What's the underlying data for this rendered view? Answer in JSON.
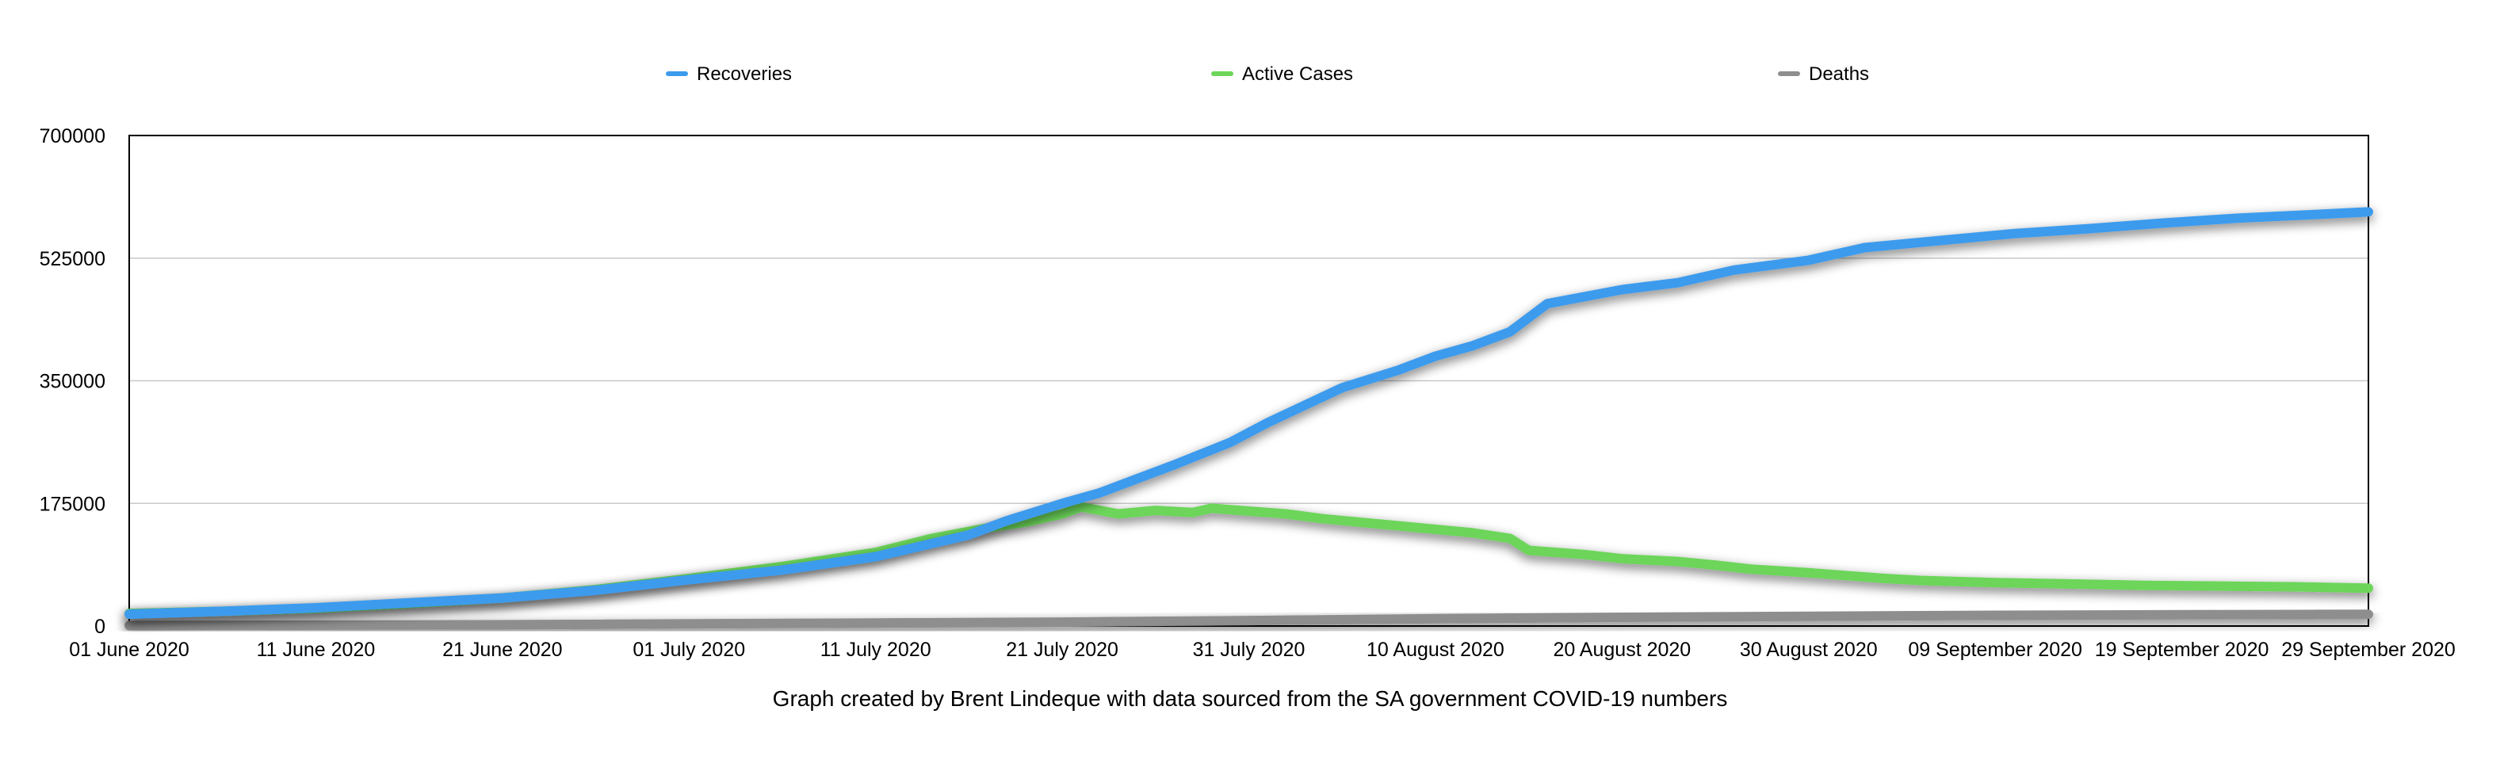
{
  "chart_data": {
    "type": "line",
    "caption": "Graph created by Brent Lindeque with data sourced from the SA government COVID-19 numbers",
    "legend_position": "top",
    "grid": "horizontal",
    "ylim": [
      0,
      700000
    ],
    "y_ticks": [
      "700000",
      "525000",
      "350000",
      "175000",
      "0"
    ],
    "x_ticks": [
      "01 June 2020",
      "11 June 2020",
      "21 June 2020",
      "01 July 2020",
      "11 July 2020",
      "21 July 2020",
      "31 July 2020",
      "10 August 2020",
      "20 August 2020",
      "30 August 2020",
      "09 September 2020",
      "19 September 2020",
      "29 September 2020"
    ],
    "series": [
      {
        "name": "Recoveries",
        "color": "#3d9bed",
        "points": [
          [
            "2020-06-01",
            17000
          ],
          [
            "2020-06-06",
            21000
          ],
          [
            "2020-06-11",
            26000
          ],
          [
            "2020-06-16",
            33000
          ],
          [
            "2020-06-21",
            40000
          ],
          [
            "2020-06-26",
            51000
          ],
          [
            "2020-07-01",
            66000
          ],
          [
            "2020-07-06",
            80000
          ],
          [
            "2020-07-11",
            99000
          ],
          [
            "2020-07-16",
            130000
          ],
          [
            "2020-07-18",
            150000
          ],
          [
            "2020-07-21",
            175000
          ],
          [
            "2020-07-23",
            190000
          ],
          [
            "2020-07-25",
            210000
          ],
          [
            "2020-07-27",
            230000
          ],
          [
            "2020-07-30",
            262000
          ],
          [
            "2020-08-01",
            290000
          ],
          [
            "2020-08-03",
            315000
          ],
          [
            "2020-08-05",
            340000
          ],
          [
            "2020-08-08",
            365000
          ],
          [
            "2020-08-10",
            385000
          ],
          [
            "2020-08-12",
            400000
          ],
          [
            "2020-08-14",
            420000
          ],
          [
            "2020-08-16",
            460000
          ],
          [
            "2020-08-20",
            480000
          ],
          [
            "2020-08-23",
            490000
          ],
          [
            "2020-08-26",
            508000
          ],
          [
            "2020-08-30",
            522000
          ],
          [
            "2020-09-02",
            540000
          ],
          [
            "2020-09-06",
            550000
          ],
          [
            "2020-09-10",
            560000
          ],
          [
            "2020-09-14",
            567000
          ],
          [
            "2020-09-18",
            575000
          ],
          [
            "2020-09-22",
            582000
          ],
          [
            "2020-09-26",
            587000
          ],
          [
            "2020-09-29",
            591000
          ]
        ]
      },
      {
        "name": "Active Cases",
        "color": "#6cd55a",
        "points": [
          [
            "2020-06-01",
            18000
          ],
          [
            "2020-06-06",
            21000
          ],
          [
            "2020-06-11",
            25000
          ],
          [
            "2020-06-16",
            32000
          ],
          [
            "2020-06-21",
            40000
          ],
          [
            "2020-06-26",
            52000
          ],
          [
            "2020-07-01",
            68000
          ],
          [
            "2020-07-06",
            85000
          ],
          [
            "2020-07-11",
            105000
          ],
          [
            "2020-07-14",
            125000
          ],
          [
            "2020-07-17",
            140000
          ],
          [
            "2020-07-19",
            148000
          ],
          [
            "2020-07-21",
            160000
          ],
          [
            "2020-07-22",
            170000
          ],
          [
            "2020-07-24",
            160000
          ],
          [
            "2020-07-26",
            165000
          ],
          [
            "2020-07-28",
            162000
          ],
          [
            "2020-07-29",
            168000
          ],
          [
            "2020-07-31",
            164000
          ],
          [
            "2020-08-02",
            160000
          ],
          [
            "2020-08-04",
            153000
          ],
          [
            "2020-08-06",
            148000
          ],
          [
            "2020-08-08",
            143000
          ],
          [
            "2020-08-10",
            138000
          ],
          [
            "2020-08-12",
            133000
          ],
          [
            "2020-08-14",
            125000
          ],
          [
            "2020-08-15",
            108000
          ],
          [
            "2020-08-18",
            102000
          ],
          [
            "2020-08-20",
            96000
          ],
          [
            "2020-08-23",
            92000
          ],
          [
            "2020-08-25",
            87000
          ],
          [
            "2020-08-27",
            81000
          ],
          [
            "2020-08-30",
            76000
          ],
          [
            "2020-09-01",
            72000
          ],
          [
            "2020-09-03",
            68000
          ],
          [
            "2020-09-05",
            65000
          ],
          [
            "2020-09-09",
            62000
          ],
          [
            "2020-09-13",
            60000
          ],
          [
            "2020-09-17",
            58000
          ],
          [
            "2020-09-21",
            57000
          ],
          [
            "2020-09-25",
            56000
          ],
          [
            "2020-09-29",
            54000
          ]
        ]
      },
      {
        "name": "Deaths",
        "color": "#8e8e8e",
        "points": [
          [
            "2020-06-01",
            700
          ],
          [
            "2020-06-11",
            1200
          ],
          [
            "2020-06-21",
            1800
          ],
          [
            "2020-07-01",
            3000
          ],
          [
            "2020-07-11",
            4300
          ],
          [
            "2020-07-21",
            5500
          ],
          [
            "2020-07-31",
            7800
          ],
          [
            "2020-08-10",
            10400
          ],
          [
            "2020-08-20",
            12400
          ],
          [
            "2020-08-30",
            13900
          ],
          [
            "2020-09-09",
            15300
          ],
          [
            "2020-09-19",
            16100
          ],
          [
            "2020-09-29",
            16700
          ]
        ]
      }
    ]
  }
}
